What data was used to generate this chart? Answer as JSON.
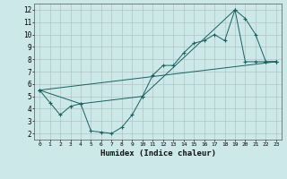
{
  "xlabel": "Humidex (Indice chaleur)",
  "background_color": "#cce8e8",
  "grid_color": "#aababa",
  "line_color": "#1a6060",
  "xlim": [
    -0.5,
    23.5
  ],
  "ylim": [
    1.5,
    12.5
  ],
  "xticks": [
    0,
    1,
    2,
    3,
    4,
    5,
    6,
    7,
    8,
    9,
    10,
    11,
    12,
    13,
    14,
    15,
    16,
    17,
    18,
    19,
    20,
    21,
    22,
    23
  ],
  "yticks": [
    2,
    3,
    4,
    5,
    6,
    7,
    8,
    9,
    10,
    11,
    12
  ],
  "line1_x": [
    0,
    1,
    2,
    3,
    4,
    5,
    6,
    7,
    8,
    9,
    10,
    11,
    12,
    13,
    14,
    15,
    16,
    17,
    18,
    19,
    20,
    21,
    22,
    23
  ],
  "line1_y": [
    5.5,
    4.5,
    3.5,
    4.2,
    4.4,
    2.2,
    2.1,
    2.0,
    2.5,
    3.5,
    5.0,
    6.7,
    7.5,
    7.5,
    8.5,
    9.3,
    9.5,
    10.0,
    9.5,
    12.0,
    7.8,
    7.8,
    7.8,
    7.8
  ],
  "line2_x": [
    0,
    4,
    10,
    19,
    20,
    21,
    22,
    23
  ],
  "line2_y": [
    5.5,
    4.4,
    5.0,
    12.0,
    11.3,
    10.0,
    7.8,
    7.8
  ],
  "line3_x": [
    0,
    23
  ],
  "line3_y": [
    5.5,
    7.8
  ]
}
